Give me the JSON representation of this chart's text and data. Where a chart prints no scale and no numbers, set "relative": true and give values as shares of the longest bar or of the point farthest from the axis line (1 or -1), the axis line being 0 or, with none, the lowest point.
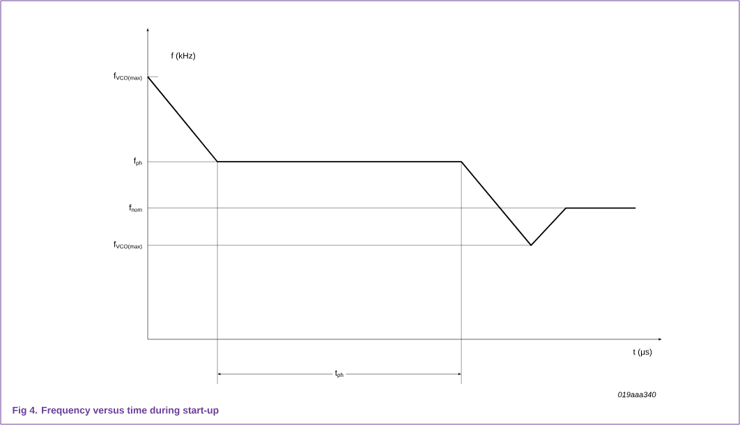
{
  "chart_data": {
    "type": "line",
    "relative": true,
    "title": "Fig 4.    Frequency versus time during start-up",
    "xlabel": "t (μs)",
    "ylabel": "f (kHz)",
    "tick_labels": false,
    "marker": "none",
    "categories": [
      null,
      null,
      null,
      null,
      null,
      null,
      null,
      null,
      null,
      null,
      null,
      null,
      null,
      null,
      null
    ],
    "series": [
      {
        "color": "#000000",
        "values": [
          1,
          0.838,
          0.676,
          0.676,
          0.676,
          0.676,
          0.676,
          0.676,
          0.676,
          0.676,
          0.517,
          0.358,
          0.5,
          0.5,
          0.5
        ]
      }
    ],
    "ref_lines": [
      {
        "axis": "y",
        "value": 1,
        "label": "f$_{VCO(max)}$",
        "color": "#000000"
      },
      {
        "axis": "y",
        "value": 0.676,
        "label": "f$_{ph}$",
        "color": "#000000"
      },
      {
        "axis": "y",
        "value": 0.5,
        "label": "f$_{nom}$",
        "color": "#000000"
      },
      {
        "axis": "y",
        "value": 0.358,
        "label": "f$_{VCO(max)}$",
        "color": "#000000"
      }
    ],
    "annotations": [
      "t$_{ph}$",
      "019aaa340"
    ]
  }
}
